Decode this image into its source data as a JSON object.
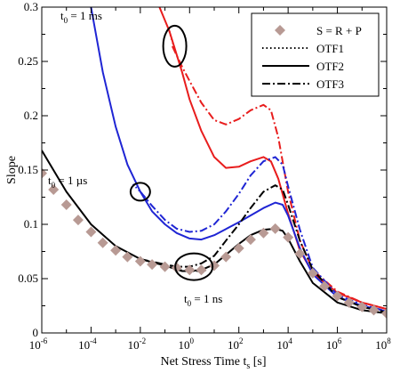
{
  "chart_data": {
    "type": "line",
    "title": "",
    "xlabel": "Net Stress Time",
    "xlabel_sub": "t",
    "xlabel_sub_letter": "s",
    "xlabel_unit": "[s]",
    "ylabel": "Slope",
    "x_scale": "log",
    "xlim": [
      1e-06,
      100000000.0
    ],
    "ylim": [
      0,
      0.3
    ],
    "x_tick_labels": [
      {
        "base": "10",
        "exp": "-6"
      },
      {
        "base": "10",
        "exp": "-4"
      },
      {
        "base": "10",
        "exp": "-2"
      },
      {
        "base": "10",
        "exp": "0"
      },
      {
        "base": "10",
        "exp": "2"
      },
      {
        "base": "10",
        "exp": "4"
      },
      {
        "base": "10",
        "exp": "6"
      },
      {
        "base": "10",
        "exp": "8"
      }
    ],
    "y_tick_labels": [
      "0",
      "0.05",
      "0.1",
      "0.15",
      "0.2",
      "0.25",
      "0.3"
    ],
    "legend": {
      "placement": "top-right",
      "entries": [
        {
          "label": "S = R + P",
          "style": "diamond"
        },
        {
          "label": "OTF1",
          "style": "dotted"
        },
        {
          "label": "OTF2",
          "style": "solid"
        },
        {
          "label": "OTF3",
          "style": "dashdot"
        }
      ]
    },
    "annotations": [
      {
        "text": "t",
        "sub": "0",
        "rest": " = 1 ms",
        "circle_at": {
          "x": 0.25,
          "y": 0.264
        }
      },
      {
        "text": "t",
        "sub": "0",
        "rest": " = 1 µs",
        "circle_at": {
          "x": 0.01,
          "y": 0.13
        }
      },
      {
        "text": "t",
        "sub": "0",
        "rest": " = 1 ns",
        "circle_at": {
          "x": 1.5,
          "y": 0.061
        }
      }
    ],
    "colors": {
      "ms": "#e81d1d",
      "us": "#1f25d4",
      "ns": "#000000",
      "markers": "#b89a94"
    },
    "series": [
      {
        "group": "ms",
        "style": "solid",
        "points": [
          [
            0.06,
            0.3
          ],
          [
            0.15,
            0.278
          ],
          [
            0.5,
            0.24
          ],
          [
            1,
            0.215
          ],
          [
            3,
            0.186
          ],
          [
            10,
            0.162
          ],
          [
            30,
            0.152
          ],
          [
            100,
            0.153
          ],
          [
            300,
            0.158
          ],
          [
            1000,
            0.162
          ],
          [
            2000,
            0.158
          ],
          [
            4000,
            0.142
          ],
          [
            10000,
            0.11
          ],
          [
            30000,
            0.076
          ],
          [
            100000,
            0.055
          ],
          [
            1000000.0,
            0.037
          ],
          [
            10000000.0,
            0.028
          ],
          [
            100000000.0,
            0.022
          ]
        ]
      },
      {
        "group": "ms",
        "style": "dashdot",
        "points": [
          [
            0.2,
            0.264
          ],
          [
            0.5,
            0.245
          ],
          [
            1,
            0.232
          ],
          [
            3,
            0.212
          ],
          [
            10,
            0.196
          ],
          [
            30,
            0.192
          ],
          [
            100,
            0.197
          ],
          [
            300,
            0.205
          ],
          [
            1000,
            0.21
          ],
          [
            2000,
            0.205
          ],
          [
            4000,
            0.18
          ],
          [
            10000,
            0.13
          ],
          [
            30000,
            0.085
          ],
          [
            100000,
            0.058
          ],
          [
            1000000.0,
            0.038
          ],
          [
            10000000.0,
            0.028
          ],
          [
            100000000.0,
            0.022
          ]
        ]
      },
      {
        "group": "ms",
        "style": "dotted",
        "points": [
          [
            0.15,
            0.278
          ],
          [
            0.2,
            0.268
          ],
          [
            0.25,
            0.262
          ]
        ]
      },
      {
        "group": "us",
        "style": "solid",
        "points": [
          [
            0.0001,
            0.3
          ],
          [
            0.0003,
            0.24
          ],
          [
            0.001,
            0.19
          ],
          [
            0.003,
            0.155
          ],
          [
            0.01,
            0.13
          ],
          [
            0.03,
            0.112
          ],
          [
            0.1,
            0.1
          ],
          [
            0.3,
            0.092
          ],
          [
            1,
            0.087
          ],
          [
            3,
            0.086
          ],
          [
            10,
            0.09
          ],
          [
            100,
            0.102
          ],
          [
            1000,
            0.115
          ],
          [
            3000,
            0.12
          ],
          [
            6000,
            0.118
          ],
          [
            10000,
            0.108
          ],
          [
            30000,
            0.078
          ],
          [
            100000,
            0.054
          ],
          [
            1000000.0,
            0.033
          ],
          [
            10000000.0,
            0.025
          ],
          [
            100000000.0,
            0.02
          ]
        ]
      },
      {
        "group": "us",
        "style": "dashdot",
        "points": [
          [
            0.01,
            0.13
          ],
          [
            0.03,
            0.117
          ],
          [
            0.1,
            0.104
          ],
          [
            0.3,
            0.096
          ],
          [
            1,
            0.093
          ],
          [
            3,
            0.094
          ],
          [
            10,
            0.1
          ],
          [
            30,
            0.112
          ],
          [
            100,
            0.128
          ],
          [
            300,
            0.145
          ],
          [
            1000,
            0.158
          ],
          [
            3000,
            0.162
          ],
          [
            6000,
            0.155
          ],
          [
            10000,
            0.135
          ],
          [
            30000,
            0.095
          ],
          [
            100000,
            0.06
          ],
          [
            1000000.0,
            0.035
          ],
          [
            10000000.0,
            0.026
          ],
          [
            100000000.0,
            0.02
          ]
        ]
      },
      {
        "group": "us",
        "style": "dotted",
        "points": [
          [
            0.005,
            0.137
          ],
          [
            0.01,
            0.13
          ],
          [
            0.02,
            0.122
          ]
        ]
      },
      {
        "group": "ns",
        "style": "solid",
        "points": [
          [
            1e-06,
            0.168
          ],
          [
            1e-05,
            0.13
          ],
          [
            0.0001,
            0.1
          ],
          [
            0.001,
            0.08
          ],
          [
            0.01,
            0.068
          ],
          [
            0.1,
            0.062
          ],
          [
            0.5,
            0.057
          ],
          [
            1,
            0.057
          ],
          [
            3,
            0.058
          ],
          [
            10,
            0.063
          ],
          [
            30,
            0.072
          ],
          [
            100,
            0.082
          ],
          [
            300,
            0.09
          ],
          [
            1000,
            0.095
          ],
          [
            3000,
            0.096
          ],
          [
            6000,
            0.094
          ],
          [
            10000,
            0.087
          ],
          [
            30000,
            0.066
          ],
          [
            100000,
            0.046
          ],
          [
            1000000.0,
            0.028
          ],
          [
            10000000.0,
            0.021
          ],
          [
            100000000.0,
            0.018
          ]
        ]
      },
      {
        "group": "ns",
        "style": "dashdot",
        "points": [
          [
            0.01,
            0.068
          ],
          [
            0.1,
            0.063
          ],
          [
            0.3,
            0.061
          ],
          [
            1,
            0.061
          ],
          [
            3,
            0.064
          ],
          [
            10,
            0.071
          ],
          [
            30,
            0.085
          ],
          [
            100,
            0.1
          ],
          [
            300,
            0.115
          ],
          [
            1000,
            0.13
          ],
          [
            3000,
            0.136
          ],
          [
            6000,
            0.132
          ],
          [
            10000,
            0.118
          ],
          [
            30000,
            0.085
          ],
          [
            100000,
            0.058
          ],
          [
            1000000.0,
            0.033
          ],
          [
            10000000.0,
            0.024
          ],
          [
            100000000.0,
            0.019
          ]
        ]
      },
      {
        "group": "ns",
        "style": "dotted",
        "points": [
          [
            0.3,
            0.058
          ],
          [
            1,
            0.057
          ],
          [
            3,
            0.057
          ],
          [
            5,
            0.058
          ]
        ]
      },
      {
        "group": "markers",
        "style": "diamond",
        "points": [
          [
            1e-06,
            0.147
          ],
          [
            3e-06,
            0.132
          ],
          [
            1e-05,
            0.118
          ],
          [
            3e-05,
            0.104
          ],
          [
            0.0001,
            0.093
          ],
          [
            0.0003,
            0.083
          ],
          [
            0.001,
            0.076
          ],
          [
            0.003,
            0.07
          ],
          [
            0.01,
            0.066
          ],
          [
            0.03,
            0.063
          ],
          [
            0.1,
            0.061
          ],
          [
            0.3,
            0.06
          ],
          [
            1,
            0.058
          ],
          [
            3,
            0.058
          ],
          [
            10,
            0.062
          ],
          [
            30,
            0.07
          ],
          [
            100,
            0.078
          ],
          [
            300,
            0.086
          ],
          [
            1000,
            0.092
          ],
          [
            3000,
            0.096
          ],
          [
            10000,
            0.088
          ],
          [
            30000,
            0.073
          ],
          [
            100000,
            0.055
          ],
          [
            300000,
            0.043
          ],
          [
            1000000.0,
            0.034
          ],
          [
            3000000.0,
            0.028
          ],
          [
            10000000.0,
            0.024
          ],
          [
            30000000.0,
            0.021
          ],
          [
            100000000.0,
            0.018
          ]
        ]
      }
    ]
  }
}
